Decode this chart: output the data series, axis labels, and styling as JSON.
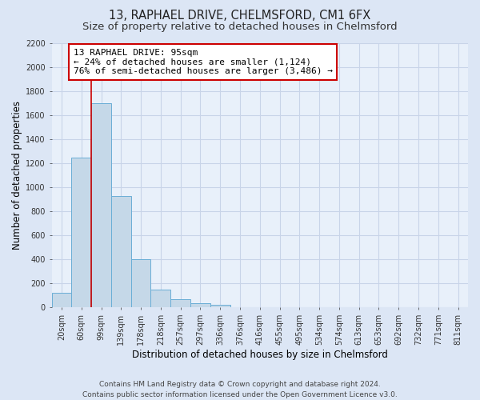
{
  "title1": "13, RAPHAEL DRIVE, CHELMSFORD, CM1 6FX",
  "title2": "Size of property relative to detached houses in Chelmsford",
  "xlabel": "Distribution of detached houses by size in Chelmsford",
  "ylabel": "Number of detached properties",
  "bar_labels": [
    "20sqm",
    "60sqm",
    "99sqm",
    "139sqm",
    "178sqm",
    "218sqm",
    "257sqm",
    "297sqm",
    "336sqm",
    "376sqm",
    "416sqm",
    "455sqm",
    "495sqm",
    "534sqm",
    "574sqm",
    "613sqm",
    "653sqm",
    "692sqm",
    "732sqm",
    "771sqm",
    "811sqm"
  ],
  "bar_values": [
    120,
    1250,
    1700,
    930,
    400,
    150,
    70,
    35,
    20,
    0,
    0,
    0,
    0,
    0,
    0,
    0,
    0,
    0,
    0,
    0,
    0
  ],
  "bar_color": "#c5d8e8",
  "bar_edge_color": "#6aaed6",
  "vline_x_index": 2,
  "vline_color": "#cc0000",
  "annotation_title": "13 RAPHAEL DRIVE: 95sqm",
  "annotation_line1": "← 24% of detached houses are smaller (1,124)",
  "annotation_line2": "76% of semi-detached houses are larger (3,486) →",
  "annotation_box_color": "#ffffff",
  "annotation_box_edge_color": "#cc0000",
  "ylim": [
    0,
    2200
  ],
  "yticks": [
    0,
    200,
    400,
    600,
    800,
    1000,
    1200,
    1400,
    1600,
    1800,
    2000,
    2200
  ],
  "footer1": "Contains HM Land Registry data © Crown copyright and database right 2024.",
  "footer2": "Contains public sector information licensed under the Open Government Licence v3.0.",
  "bg_color": "#dce6f5",
  "plot_bg_color": "#e8f0fa",
  "grid_color": "#c8d4e8",
  "title_fontsize": 10.5,
  "subtitle_fontsize": 9.5,
  "axis_label_fontsize": 8.5,
  "tick_fontsize": 7,
  "annotation_fontsize": 8,
  "footer_fontsize": 6.5
}
